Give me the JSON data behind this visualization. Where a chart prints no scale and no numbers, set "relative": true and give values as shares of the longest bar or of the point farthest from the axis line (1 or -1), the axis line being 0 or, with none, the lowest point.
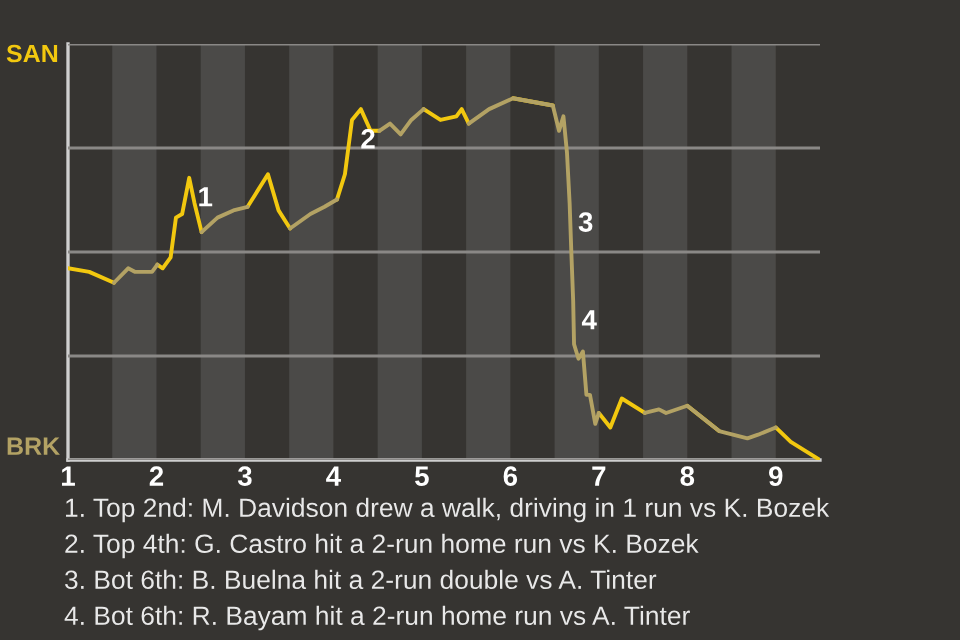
{
  "chart_data": {
    "type": "line",
    "relative": true,
    "x": [
      1.0,
      1.24,
      1.52,
      1.68,
      1.76,
      1.95,
      2.01,
      2.07,
      2.16,
      2.22,
      2.29,
      2.37,
      2.43,
      2.51,
      2.69,
      2.87,
      3.03,
      3.26,
      3.38,
      3.51,
      3.74,
      3.9,
      4.04,
      4.13,
      4.21,
      4.31,
      4.42,
      4.52,
      4.64,
      4.76,
      4.88,
      5.02,
      5.21,
      5.39,
      5.45,
      5.53,
      5.76,
      6.03,
      6.48,
      6.55,
      6.6,
      6.64,
      6.67,
      6.69,
      6.71,
      6.72,
      6.77,
      6.82,
      6.86,
      6.9,
      6.96,
      7.0,
      7.13,
      7.26,
      7.52,
      7.68,
      7.76,
      8.0,
      8.36,
      8.68,
      8.8,
      9.0,
      9.17,
      9.5
    ],
    "series": [
      {
        "color": "#f2c80f",
        "values": [
          0.53,
          0.52,
          0.49,
          null,
          null,
          null,
          0.54,
          0.53,
          0.56,
          0.67,
          0.68,
          0.78,
          0.71,
          0.63,
          null,
          null,
          0.7,
          0.79,
          0.69,
          0.64,
          null,
          null,
          0.72,
          0.79,
          0.94,
          0.97,
          0.91,
          0.91,
          null,
          null,
          null,
          0.97,
          0.94,
          0.95,
          0.97,
          0.93,
          null,
          1,
          0.98,
          null,
          null,
          null,
          null,
          null,
          null,
          null,
          null,
          null,
          null,
          null,
          null,
          0.13,
          0.09,
          0.17,
          0.13,
          null,
          null,
          0.15,
          0.08,
          null,
          null,
          0.09,
          0.05,
          0
        ]
      },
      {
        "color": "#b3a264",
        "values": [
          null,
          null,
          0.49,
          0.53,
          0.52,
          0.52,
          0.54,
          null,
          null,
          null,
          null,
          null,
          null,
          0.63,
          0.67,
          0.69,
          0.7,
          null,
          null,
          0.64,
          0.68,
          0.7,
          0.72,
          null,
          null,
          null,
          null,
          0.91,
          0.93,
          0.9,
          0.94,
          0.97,
          null,
          null,
          null,
          0.93,
          0.97,
          1,
          0.98,
          0.91,
          0.95,
          0.85,
          0.71,
          0.57,
          0.44,
          0.32,
          0.28,
          0.3,
          0.18,
          0.18,
          0.1,
          0.13,
          null,
          null,
          0.13,
          0.14,
          0.13,
          0.15,
          0.08,
          0.06,
          0.07,
          0.09,
          null,
          null
        ]
      }
    ],
    "xlim": [
      1,
      9.5
    ],
    "xticks": [
      1,
      2,
      3,
      4,
      5,
      6,
      7,
      8,
      9
    ],
    "grid": "y",
    "bands": [
      {
        "axis": "x",
        "from": 1.5,
        "to": 2,
        "color": "#4b4a48"
      },
      {
        "axis": "x",
        "from": 2.5,
        "to": 3,
        "color": "#4b4a48"
      },
      {
        "axis": "x",
        "from": 3.5,
        "to": 4,
        "color": "#4b4a48"
      },
      {
        "axis": "x",
        "from": 4.5,
        "to": 5,
        "color": "#4b4a48"
      },
      {
        "axis": "x",
        "from": 5.5,
        "to": 6,
        "color": "#4b4a48"
      },
      {
        "axis": "x",
        "from": 6.5,
        "to": 7,
        "color": "#4b4a48"
      },
      {
        "axis": "x",
        "from": 7.5,
        "to": 8,
        "color": "#4b4a48"
      },
      {
        "axis": "x",
        "from": 8.5,
        "to": 9,
        "color": "#4b4a48"
      }
    ],
    "annotations": [
      "SAN",
      "BRK",
      {
        "text": "1",
        "x": 2.37,
        "y": 0.78
      },
      {
        "text": "2",
        "x": 4.21,
        "y": 0.94
      },
      {
        "text": "3",
        "x": 6.67,
        "y": 0.71
      },
      {
        "text": "4",
        "x": 6.71,
        "y": 0.44
      },
      "1. Top 2nd: M. Davidson drew a walk, driving in 1 run vs K. Bozek",
      "2. Top 4th: G. Castro hit a 2-run home run vs K. Bozek",
      "3. Bot 6th: B. Buelna hit a 2-run double vs A. Tinter",
      "4. Bot 6th: R. Bayam hit a 2-run home run vs A. Tinter"
    ]
  }
}
